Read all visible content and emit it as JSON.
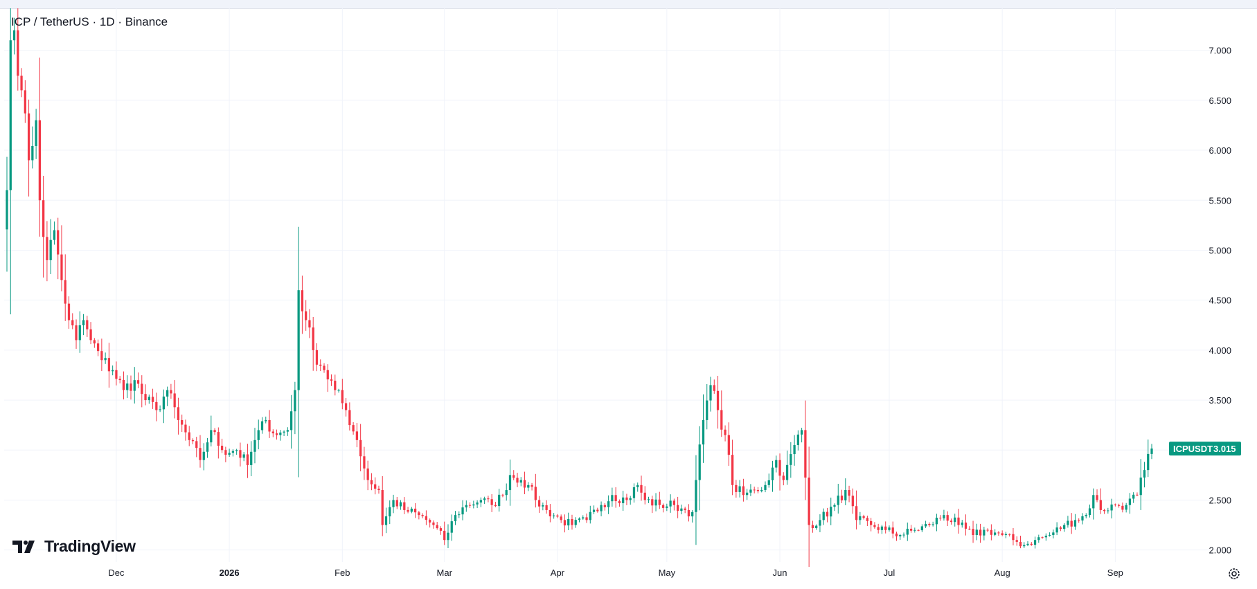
{
  "header": {
    "title": "ICP / TetherUS · 1D · Binance"
  },
  "branding": {
    "logo_text": "TradingView"
  },
  "price_tag": {
    "symbol": "ICPUSDT",
    "value": "3.015",
    "color": "#089981"
  },
  "colors": {
    "up": "#089981",
    "down": "#f23645",
    "grid": "#f0f3fa"
  },
  "chart_data": {
    "type": "candlestick",
    "title": "ICP / TetherUS · 1D · Binance",
    "ylim": [
      1.88,
      7.42
    ],
    "y_ticks": [
      "7.000",
      "6.500",
      "6.000",
      "5.500",
      "5.000",
      "4.500",
      "4.000",
      "3.500",
      "3.000",
      "2.500",
      "2.000"
    ],
    "x_ticks": [
      "Dec",
      "2026",
      "Feb",
      "Mar",
      "Apr",
      "May",
      "Jun",
      "Jul",
      "Aug",
      "Sep"
    ],
    "last_price": 3.015,
    "close_path": [
      [
        "2025-11-01",
        5.6
      ],
      [
        "2025-11-02",
        7.1
      ],
      [
        "2025-11-03",
        7.2
      ],
      [
        "2025-11-05",
        6.6
      ],
      [
        "2025-11-07",
        5.9
      ],
      [
        "2025-11-09",
        6.3
      ],
      [
        "2025-11-10",
        5.5
      ],
      [
        "2025-11-12",
        4.9
      ],
      [
        "2025-11-14",
        5.2
      ],
      [
        "2025-11-16",
        4.7
      ],
      [
        "2025-11-18",
        4.3
      ],
      [
        "2025-11-20",
        4.1
      ],
      [
        "2025-11-22",
        4.3
      ],
      [
        "2025-11-24",
        4.1
      ],
      [
        "2025-11-27",
        3.9
      ],
      [
        "2025-11-30",
        3.8
      ],
      [
        "2025-12-03",
        3.6
      ],
      [
        "2025-12-06",
        3.7
      ],
      [
        "2025-12-09",
        3.5
      ],
      [
        "2025-12-12",
        3.4
      ],
      [
        "2025-12-15",
        3.6
      ],
      [
        "2025-12-18",
        3.3
      ],
      [
        "2025-12-21",
        3.1
      ],
      [
        "2025-12-24",
        2.9
      ],
      [
        "2025-12-27",
        3.2
      ],
      [
        "2025-12-30",
        3.0
      ],
      [
        "2026-01-03",
        3.0
      ],
      [
        "2026-01-06",
        2.85
      ],
      [
        "2026-01-08",
        3.1
      ],
      [
        "2026-01-11",
        3.3
      ],
      [
        "2026-01-14",
        3.15
      ],
      [
        "2026-01-17",
        3.2
      ],
      [
        "2026-01-19",
        3.6
      ],
      [
        "2026-01-20",
        4.6
      ],
      [
        "2026-01-22",
        4.3
      ],
      [
        "2026-01-24",
        4.0
      ],
      [
        "2026-01-27",
        3.8
      ],
      [
        "2026-01-30",
        3.6
      ],
      [
        "2026-02-02",
        3.4
      ],
      [
        "2026-02-05",
        3.1
      ],
      [
        "2026-02-08",
        2.7
      ],
      [
        "2026-02-11",
        2.6
      ],
      [
        "2026-02-12",
        2.25
      ],
      [
        "2026-02-15",
        2.5
      ],
      [
        "2026-02-18",
        2.4
      ],
      [
        "2026-02-22",
        2.35
      ],
      [
        "2026-02-26",
        2.25
      ],
      [
        "2026-03-01",
        2.1
      ],
      [
        "2026-03-04",
        2.35
      ],
      [
        "2026-03-07",
        2.45
      ],
      [
        "2026-03-11",
        2.5
      ],
      [
        "2026-03-14",
        2.45
      ],
      [
        "2026-03-17",
        2.55
      ],
      [
        "2026-03-19",
        2.75
      ],
      [
        "2026-03-22",
        2.7
      ],
      [
        "2026-03-24",
        2.65
      ],
      [
        "2026-03-26",
        2.5
      ],
      [
        "2026-03-29",
        2.4
      ],
      [
        "2026-04-02",
        2.3
      ],
      [
        "2026-04-05",
        2.25
      ],
      [
        "2026-04-09",
        2.3
      ],
      [
        "2026-04-13",
        2.45
      ],
      [
        "2026-04-16",
        2.55
      ],
      [
        "2026-04-20",
        2.5
      ],
      [
        "2026-04-23",
        2.65
      ],
      [
        "2026-04-25",
        2.5
      ],
      [
        "2026-04-29",
        2.45
      ],
      [
        "2026-05-03",
        2.45
      ],
      [
        "2026-05-06",
        2.4
      ],
      [
        "2026-05-08",
        2.38
      ],
      [
        "2026-05-09",
        2.7
      ],
      [
        "2026-05-11",
        3.3
      ],
      [
        "2026-05-13",
        3.65
      ],
      [
        "2026-05-15",
        3.4
      ],
      [
        "2026-05-17",
        3.15
      ],
      [
        "2026-05-19",
        2.65
      ],
      [
        "2026-05-22",
        2.55
      ],
      [
        "2026-05-25",
        2.6
      ],
      [
        "2026-05-28",
        2.65
      ],
      [
        "2026-05-31",
        2.9
      ],
      [
        "2026-06-02",
        2.7
      ],
      [
        "2026-06-05",
        3.05
      ],
      [
        "2026-06-07",
        3.2
      ],
      [
        "2026-06-09",
        2.25
      ],
      [
        "2026-06-12",
        2.3
      ],
      [
        "2026-06-16",
        2.45
      ],
      [
        "2026-06-19",
        2.6
      ],
      [
        "2026-06-22",
        2.3
      ],
      [
        "2026-06-26",
        2.25
      ],
      [
        "2026-06-30",
        2.2
      ],
      [
        "2026-07-04",
        2.15
      ],
      [
        "2026-07-08",
        2.2
      ],
      [
        "2026-07-12",
        2.25
      ],
      [
        "2026-07-16",
        2.35
      ],
      [
        "2026-07-20",
        2.25
      ],
      [
        "2026-07-24",
        2.15
      ],
      [
        "2026-07-28",
        2.2
      ],
      [
        "2026-08-01",
        2.15
      ],
      [
        "2026-08-04",
        2.1
      ],
      [
        "2026-08-07",
        2.05
      ],
      [
        "2026-08-10",
        2.1
      ],
      [
        "2026-08-14",
        2.15
      ],
      [
        "2026-08-18",
        2.25
      ],
      [
        "2026-08-21",
        2.3
      ],
      [
        "2026-08-24",
        2.35
      ],
      [
        "2026-08-26",
        2.55
      ],
      [
        "2026-08-28",
        2.4
      ],
      [
        "2026-09-01",
        2.45
      ],
      [
        "2026-09-04",
        2.45
      ],
      [
        "2026-09-07",
        2.55
      ],
      [
        "2026-09-09",
        2.8
      ],
      [
        "2026-09-11",
        3.015
      ]
    ]
  }
}
